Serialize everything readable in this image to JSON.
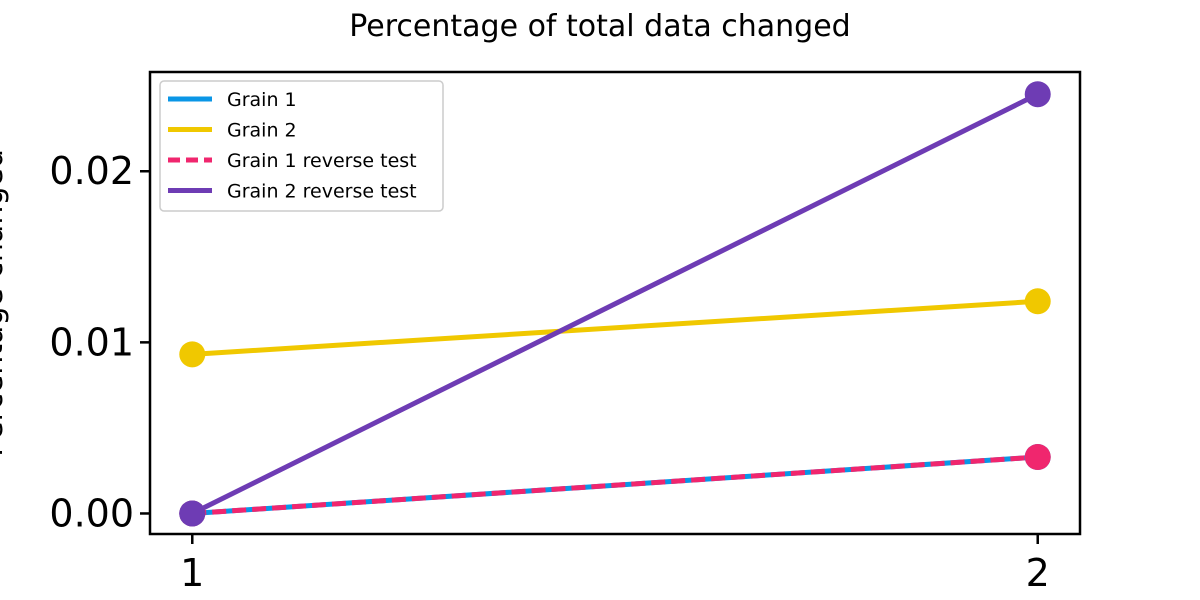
{
  "chart_data": {
    "type": "line",
    "title": "Percentage of total data changed",
    "xlabel": "",
    "ylabel": "Percentage changed",
    "x": [
      1,
      2
    ],
    "x_ticks": [
      "1",
      "2"
    ],
    "y_ticks": [
      "0.00",
      "0.01",
      "0.02"
    ],
    "y_tick_values": [
      0,
      0.01,
      0.02
    ],
    "xlim": [
      0.95,
      2.05
    ],
    "ylim": [
      -0.0012,
      0.0258
    ],
    "grid": false,
    "legend_position": "top-left",
    "series": [
      {
        "name": "Grain 1",
        "values": [
          0.0,
          0.0033
        ],
        "color": "#0a96e6",
        "dash": "solid"
      },
      {
        "name": "Grain 2",
        "values": [
          0.0093,
          0.0124
        ],
        "color": "#f0c800",
        "dash": "solid"
      },
      {
        "name": "Grain 1 reverse test",
        "values": [
          0.0,
          0.0033
        ],
        "color": "#f0266e",
        "dash": "dashed"
      },
      {
        "name": "Grain 2 reverse test",
        "values": [
          0.0,
          0.0245
        ],
        "color": "#6e3cb4",
        "dash": "solid"
      }
    ]
  }
}
